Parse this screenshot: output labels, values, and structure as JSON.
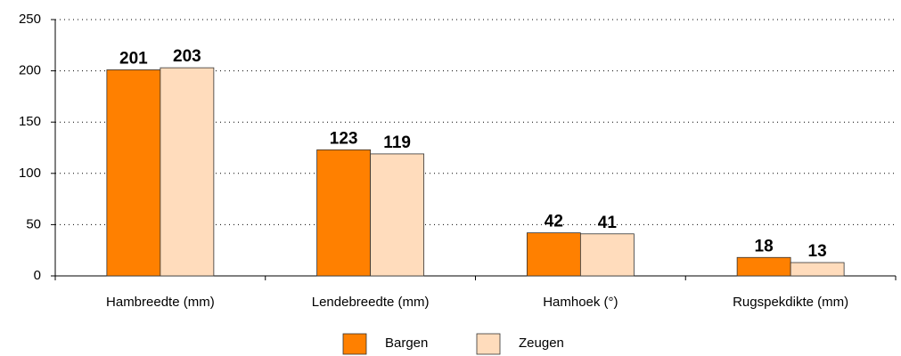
{
  "chart_data": {
    "type": "bar",
    "categories": [
      "Hambreedte (mm)",
      "Lendebreedte (mm)",
      "Hamhoek (°)",
      "Rugspekdikte (mm)"
    ],
    "series": [
      {
        "name": "Bargen",
        "color": "#ff8000",
        "values": [
          201,
          123,
          42,
          18
        ]
      },
      {
        "name": "Zeugen",
        "color": "#ffdcbc",
        "values": [
          203,
          119,
          41,
          13
        ]
      }
    ],
    "ylim": [
      0,
      250
    ],
    "yticks": [
      0,
      50,
      100,
      150,
      200,
      250
    ],
    "grid": true,
    "legend": "bottom"
  }
}
